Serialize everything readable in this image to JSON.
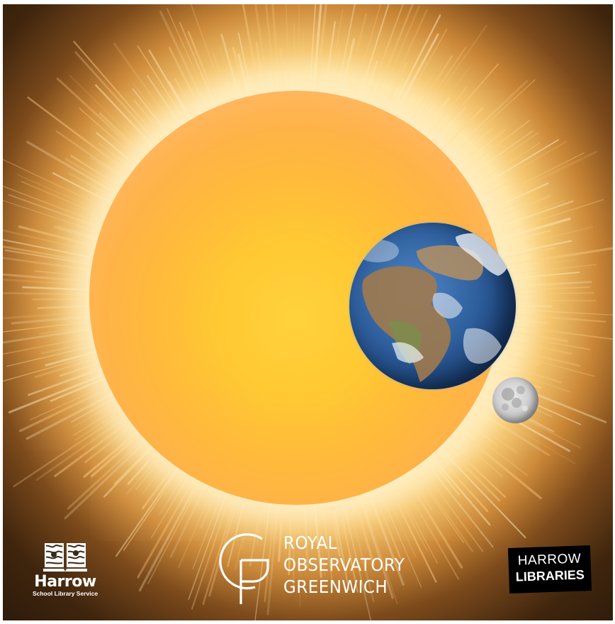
{
  "scene": {
    "bodies": [
      "sun",
      "earth",
      "moon"
    ],
    "colors": {
      "background_dark": "#130c06",
      "corona": "#fff3d6",
      "sun_core": "#ffd23c",
      "sun_edge": "#ffb347",
      "earth_ocean": "#2e5e9c",
      "moon": "#cfcfcf"
    }
  },
  "logos": {
    "harrow_sls": {
      "name": "Harrow",
      "subtitle": "School Library Service"
    },
    "rog": {
      "line1": "ROYAL",
      "line2": "OBSERVATORY",
      "line3": "GREENWICH"
    },
    "harrow_libraries": {
      "line1": "HARROW",
      "line2": "LIBRARIES"
    }
  }
}
